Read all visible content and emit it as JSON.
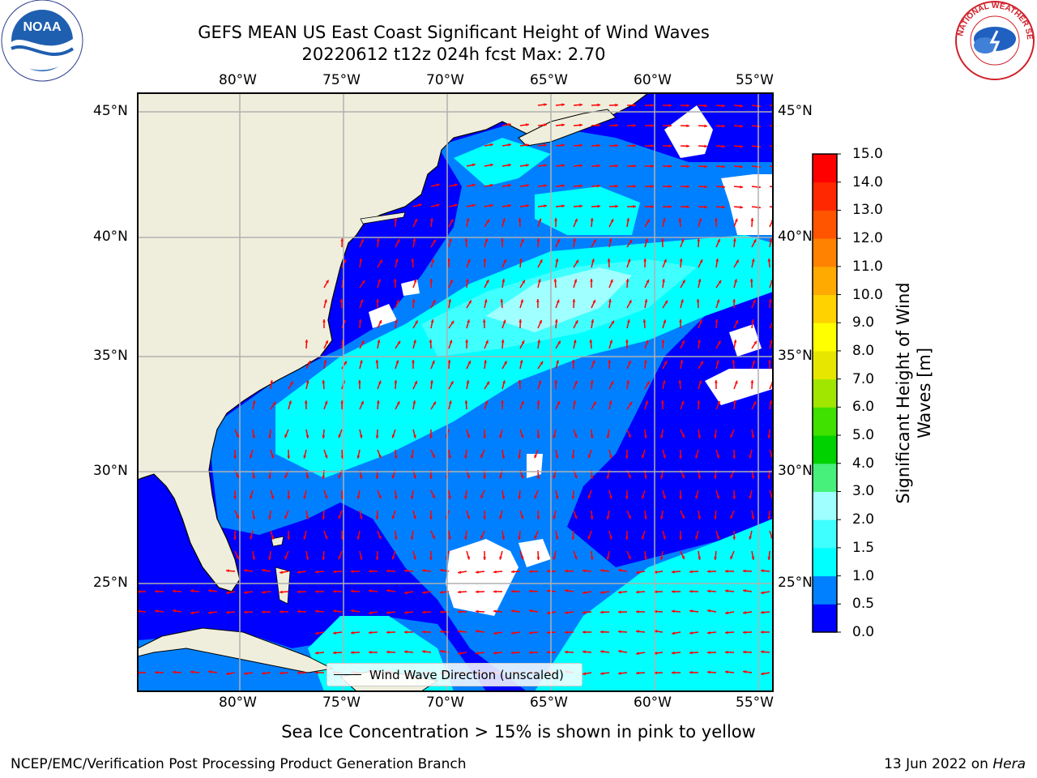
{
  "title_line1": "GEFS MEAN US East Coast Significant Height of Wind Waves",
  "title_line2": "20220612 t12z 024h fcst   Max: 2.70",
  "lon_labels": [
    "80°W",
    "75°W",
    "70°W",
    "65°W",
    "60°W",
    "55°W"
  ],
  "lat_labels": [
    "45°N",
    "40°N",
    "35°N",
    "30°N",
    "25°N"
  ],
  "colorbar": {
    "label_line1": "Significant Height of Wind",
    "label_line2": "Waves [m]",
    "ticks": [
      "15.0",
      "14.0",
      "13.0",
      "12.0",
      "11.0",
      "10.0",
      "9.0",
      "8.0",
      "7.0",
      "6.0",
      "5.0",
      "4.0",
      "3.0",
      "2.0",
      "1.5",
      "1.0",
      "0.5",
      "0.0"
    ],
    "colors": [
      "#0000ff",
      "#0080ff",
      "#00ffff",
      "#40ffff",
      "#a0ffff",
      "#46f07a",
      "#00d200",
      "#40e000",
      "#a0e600",
      "#e6e600",
      "#ffff00",
      "#ffd200",
      "#ffaa00",
      "#ff8200",
      "#ff5500",
      "#ff2800",
      "#ff0000"
    ]
  },
  "legend_label": "Wind Wave Direction (unscaled)",
  "footnote": "Sea Ice Concentration > 15% is shown in pink to yellow",
  "footer_left": "NCEP/EMC/Verification Post Processing Product Generation Branch",
  "footer_right_date": "13 Jun 2022 on ",
  "footer_right_host": "Hera",
  "logos": {
    "left": "NOAA",
    "right": "NATIONAL WEATHER SERVICE"
  },
  "map_colors": {
    "land": "#efeedc",
    "ocean_low": "#0000ff",
    "ocean_mid": "#0080ff",
    "ocean_high": "#00ffff",
    "ocean_peak": "#40ffff",
    "ocean_max": "#a0ffff",
    "arrows": "#ff0000",
    "grid": "#b0b0b0"
  }
}
